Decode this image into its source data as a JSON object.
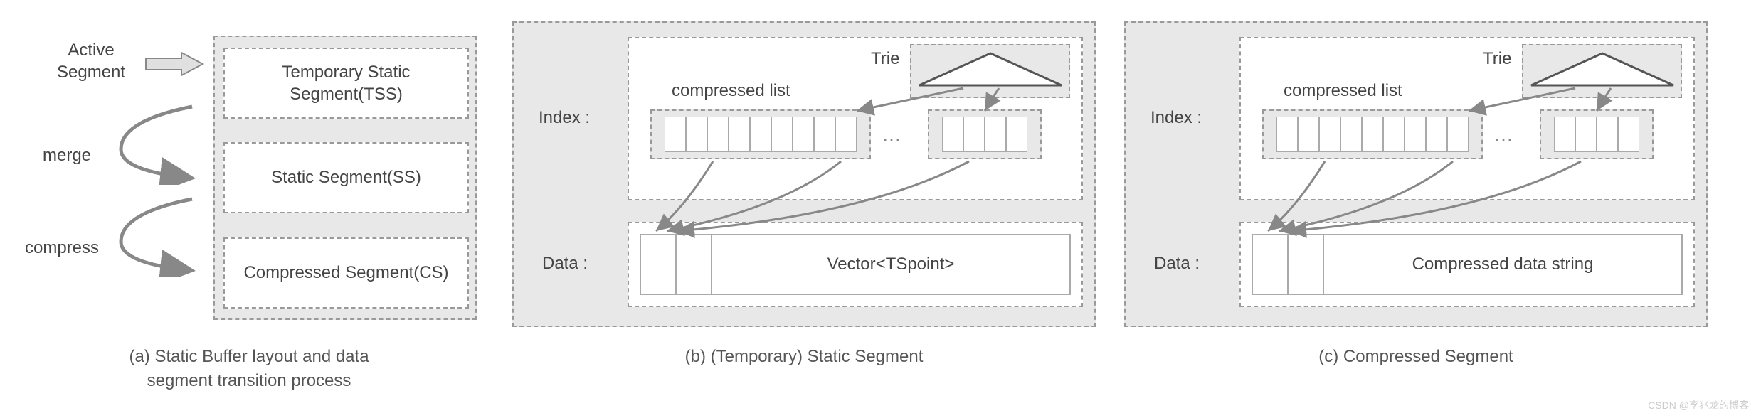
{
  "colors": {
    "panel_bg": "#e8e8e8",
    "border": "#999999",
    "text": "#444444",
    "white": "#ffffff",
    "cell_border": "#aaaaaa",
    "arrow": "#888888",
    "watermark": "#cccccc"
  },
  "fontsize": {
    "label": 24,
    "caption": 24,
    "watermark": 14
  },
  "panel_a": {
    "active_label": "Active\nSegment",
    "merge_label": "merge",
    "compress_label": "compress",
    "segments": [
      {
        "label": "Temporary Static Segment(TSS)"
      },
      {
        "label": "Static Segment(SS)"
      },
      {
        "label": "Compressed Segment(CS)"
      }
    ],
    "caption": "(a) Static Buffer layout and data\nsegment transition process"
  },
  "panel_b": {
    "index_label": "Index :",
    "data_label": "Data :",
    "trie_label": "Trie",
    "clist_label": "compressed list",
    "clist1_cells": 9,
    "clist2_cells": 4,
    "data_text": "Vector<TSpoint>",
    "caption": "(b) (Temporary) Static Segment"
  },
  "panel_c": {
    "index_label": "Index :",
    "data_label": "Data :",
    "trie_label": "Trie",
    "clist_label": "compressed list",
    "clist1_cells": 9,
    "clist2_cells": 4,
    "data_text": "Compressed data string",
    "caption": "(c) Compressed Segment"
  },
  "watermark": "CSDN @李兆龙的博客"
}
